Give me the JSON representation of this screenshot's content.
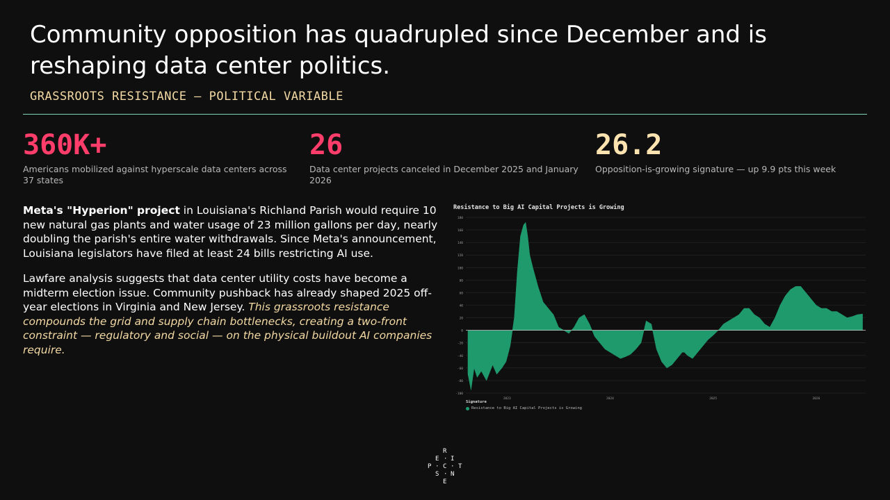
{
  "headline": "Community opposition has quadrupled since December and is reshaping data center politics.",
  "kicker": "GRASSROOTS RESISTANCE — POLITICAL VARIABLE",
  "stats": [
    {
      "value": "360K+",
      "desc": "Americans mobilized against hyperscale data centers across 37 states"
    },
    {
      "value": "26",
      "desc": "Data center projects canceled in December 2025 and January 2026"
    },
    {
      "value": "26.2",
      "desc": "Opposition-is-growing signature — up 9.9 pts this week"
    }
  ],
  "body": {
    "p1_bold": "Meta's \"Hyperion\" project",
    "p1_rest": " in Louisiana's Richland Parish would require 10 new natural gas plants and water usage of 23 million gallons per day, nearly doubling the parish's entire water withdrawals. Since Meta's announcement, Louisiana legislators have filed at least 24 bills restricting AI use.",
    "p2_plain": "Lawfare analysis suggests that data center utility costs have become a midterm election issue. Community pushback has already shaped 2025 off-year elections in Virginia and New Jersey. ",
    "p2_italic": "This grassroots resistance compounds the grid and supply chain bottlenecks, creating a two-front constraint — regulatory and social — on the physical buildout AI companies require."
  },
  "colors": {
    "accent_red": "#ff3d6b",
    "accent_cream": "#fde3b0",
    "rule": "#7fd7b6",
    "series": "#1f9a6d"
  },
  "chart_data": {
    "type": "area",
    "title": "Resistance to Big AI Capital Projects is Growing",
    "ylim": [
      -100,
      180
    ],
    "yticks": [
      -100,
      -80,
      -60,
      -40,
      -20,
      0,
      20,
      40,
      60,
      80,
      100,
      120,
      140,
      160,
      180
    ],
    "xlim": [
      2022.6,
      2026.48
    ],
    "xticks": [
      {
        "x": 2023,
        "label": "2023"
      },
      {
        "x": 2024,
        "label": "2024"
      },
      {
        "x": 2025,
        "label": "2025"
      },
      {
        "x": 2026,
        "label": "2026"
      }
    ],
    "grid": true,
    "legend": {
      "title": "Signature",
      "placement": "bottom-left"
    },
    "series": [
      {
        "name": "Resistance to Big AI Capital Projects is Growing",
        "x": [
          2022.62,
          2022.65,
          2022.68,
          2022.71,
          2022.75,
          2022.8,
          2022.86,
          2022.9,
          2022.95,
          2022.99,
          2023.03,
          2023.07,
          2023.1,
          2023.13,
          2023.16,
          2023.18,
          2023.2,
          2023.22,
          2023.25,
          2023.3,
          2023.35,
          2023.4,
          2023.45,
          2023.5,
          2023.55,
          2023.6,
          2023.65,
          2023.7,
          2023.75,
          2023.8,
          2023.85,
          2023.9,
          2023.95,
          2024.0,
          2024.05,
          2024.1,
          2024.15,
          2024.2,
          2024.25,
          2024.3,
          2024.35,
          2024.4,
          2024.45,
          2024.5,
          2024.55,
          2024.6,
          2024.65,
          2024.7,
          2024.72,
          2024.75,
          2024.8,
          2024.85,
          2024.9,
          2024.95,
          2025.0,
          2025.05,
          2025.1,
          2025.15,
          2025.2,
          2025.25,
          2025.3,
          2025.35,
          2025.4,
          2025.45,
          2025.5,
          2025.55,
          2025.6,
          2025.65,
          2025.7,
          2025.75,
          2025.8,
          2025.85,
          2025.9,
          2025.95,
          2026.0,
          2026.05,
          2026.1,
          2026.15,
          2026.2,
          2026.25,
          2026.3,
          2026.35,
          2026.4,
          2026.45
        ],
        "values": [
          -70,
          -95,
          -60,
          -75,
          -65,
          -80,
          -55,
          -70,
          -60,
          -50,
          -25,
          20,
          95,
          150,
          168,
          172,
          150,
          120,
          100,
          70,
          45,
          35,
          25,
          5,
          0,
          -5,
          5,
          20,
          25,
          10,
          -10,
          -20,
          -30,
          -35,
          -40,
          -45,
          -42,
          -38,
          -30,
          -20,
          15,
          10,
          -30,
          -50,
          -60,
          -55,
          -45,
          -35,
          -35,
          -40,
          -45,
          -35,
          -25,
          -15,
          -8,
          0,
          10,
          15,
          20,
          25,
          35,
          35,
          25,
          20,
          10,
          5,
          20,
          40,
          55,
          65,
          70,
          70,
          60,
          50,
          40,
          35,
          35,
          30,
          30,
          25,
          20,
          22,
          25,
          26
        ]
      }
    ]
  }
}
